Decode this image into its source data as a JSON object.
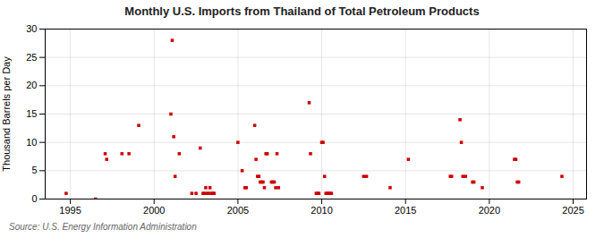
{
  "chart_data": {
    "type": "scatter",
    "title": "Monthly U.S. Imports from Thailand of Total Petroleum Products",
    "ylabel": "Thousand Barrels per Day",
    "annotations": [
      "Source: U.S. Energy Information Administration"
    ],
    "color": "#cc0000",
    "marker": "square",
    "grid": true,
    "xlim": [
      1993.5,
      2025.8
    ],
    "ylim": [
      0,
      30
    ],
    "xticks": [
      1995,
      2000,
      2005,
      2010,
      2015,
      2020,
      2025
    ],
    "yticks": [
      0,
      5,
      10,
      15,
      20,
      25,
      30
    ],
    "x": [
      1994.75,
      1996.5,
      1997.08,
      1997.17,
      1998.08,
      1998.5,
      1999.08,
      2001.0,
      2001.08,
      2001.17,
      2001.25,
      2001.5,
      2002.25,
      2002.5,
      2002.75,
      2002.92,
      2003.0,
      2003.08,
      2003.17,
      2003.25,
      2003.33,
      2003.42,
      2003.5,
      2003.58,
      2005.0,
      2005.25,
      2005.42,
      2005.5,
      2006.0,
      2006.08,
      2006.17,
      2006.25,
      2006.33,
      2006.42,
      2006.5,
      2006.58,
      2006.67,
      2006.75,
      2007.0,
      2007.08,
      2007.17,
      2007.25,
      2007.33,
      2007.42,
      2009.25,
      2009.33,
      2009.67,
      2009.75,
      2009.83,
      2010.0,
      2010.08,
      2010.17,
      2010.25,
      2010.33,
      2010.42,
      2010.5,
      2010.58,
      2012.5,
      2012.67,
      2014.08,
      2015.17,
      2017.67,
      2017.75,
      2018.25,
      2018.33,
      2018.42,
      2018.58,
      2019.0,
      2019.08,
      2019.58,
      2021.5,
      2021.58,
      2021.67,
      2021.75,
      2024.33
    ],
    "values": [
      1,
      0,
      8,
      7,
      8,
      8,
      13,
      15,
      28,
      11,
      4,
      8,
      1,
      1,
      9,
      1,
      1,
      2,
      1,
      1,
      2,
      1,
      1,
      1,
      10,
      5,
      2,
      2,
      13,
      7,
      4,
      4,
      3,
      3,
      3,
      2,
      8,
      8,
      3,
      3,
      3,
      2,
      8,
      2,
      17,
      8,
      1,
      1,
      1,
      10,
      10,
      4,
      1,
      1,
      1,
      1,
      1,
      4,
      4,
      2,
      7,
      4,
      4,
      14,
      10,
      4,
      4,
      3,
      3,
      2,
      7,
      7,
      3,
      3,
      4
    ]
  }
}
